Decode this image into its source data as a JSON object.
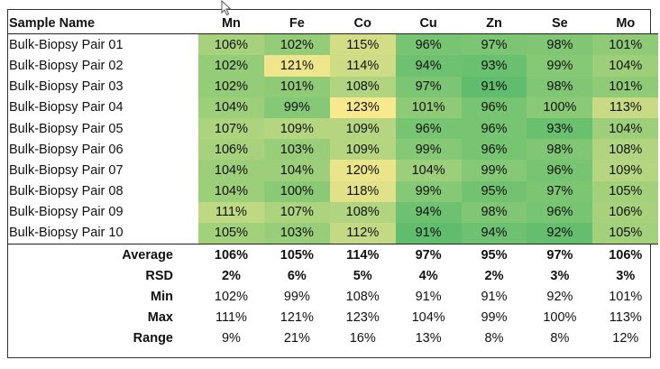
{
  "table": {
    "corner_label": "Sample Name",
    "columns": [
      "Mn",
      "Fe",
      "Co",
      "Cu",
      "Zn",
      "Se",
      "Mo"
    ],
    "rows": [
      {
        "name": "Bulk-Biopsy Pair 01",
        "values": [
          "106%",
          "102%",
          "115%",
          "96%",
          "97%",
          "98%",
          "101%"
        ]
      },
      {
        "name": "Bulk-Biopsy Pair 02",
        "values": [
          "102%",
          "121%",
          "114%",
          "94%",
          "93%",
          "99%",
          "104%"
        ]
      },
      {
        "name": "Bulk-Biopsy Pair 03",
        "values": [
          "102%",
          "101%",
          "108%",
          "97%",
          "91%",
          "98%",
          "101%"
        ]
      },
      {
        "name": "Bulk-Biopsy Pair 04",
        "values": [
          "104%",
          "99%",
          "123%",
          "101%",
          "96%",
          "100%",
          "113%"
        ]
      },
      {
        "name": "Bulk-Biopsy Pair 05",
        "values": [
          "107%",
          "109%",
          "109%",
          "96%",
          "96%",
          "93%",
          "104%"
        ]
      },
      {
        "name": "Bulk-Biopsy Pair 06",
        "values": [
          "106%",
          "103%",
          "109%",
          "99%",
          "96%",
          "98%",
          "108%"
        ]
      },
      {
        "name": "Bulk-Biopsy Pair 07",
        "values": [
          "104%",
          "104%",
          "120%",
          "104%",
          "99%",
          "96%",
          "109%"
        ]
      },
      {
        "name": "Bulk-Biopsy Pair 08",
        "values": [
          "104%",
          "100%",
          "118%",
          "99%",
          "95%",
          "97%",
          "105%"
        ]
      },
      {
        "name": "Bulk-Biopsy Pair 09",
        "values": [
          "111%",
          "107%",
          "108%",
          "94%",
          "98%",
          "96%",
          "106%"
        ]
      },
      {
        "name": "Bulk-Biopsy Pair 10",
        "values": [
          "105%",
          "103%",
          "112%",
          "91%",
          "94%",
          "92%",
          "105%"
        ]
      }
    ],
    "summary": [
      {
        "label": "Average",
        "bold": true,
        "values": [
          "106%",
          "105%",
          "114%",
          "97%",
          "95%",
          "97%",
          "106%"
        ]
      },
      {
        "label": "RSD",
        "bold": true,
        "values": [
          "2%",
          "6%",
          "5%",
          "4%",
          "2%",
          "3%",
          "3%"
        ]
      },
      {
        "label": "Min",
        "bold": false,
        "values": [
          "102%",
          "99%",
          "108%",
          "91%",
          "91%",
          "92%",
          "101%"
        ]
      },
      {
        "label": "Max",
        "bold": false,
        "values": [
          "111%",
          "121%",
          "123%",
          "104%",
          "99%",
          "100%",
          "113%"
        ]
      },
      {
        "label": "Range",
        "bold": false,
        "values": [
          "9%",
          "21%",
          "16%",
          "13%",
          "8%",
          "8%",
          "12%"
        ]
      }
    ],
    "heatmap_colors": {
      "low": "#5fbd6d",
      "high": "#f8e88e"
    }
  }
}
